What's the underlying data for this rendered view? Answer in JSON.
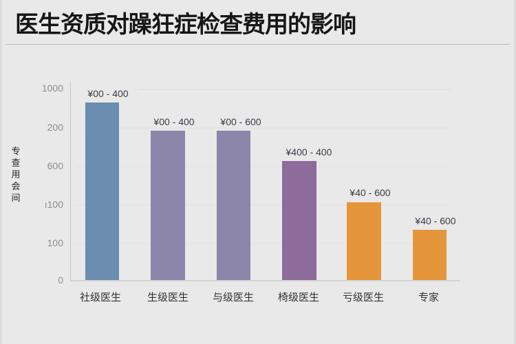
{
  "title": "医生资质对躁狂症检查费用的影响",
  "colors": {
    "blue": "#6a8db0",
    "lavender": "#8c86ab",
    "purple": "#8d6b9b",
    "orange": "#e5963b"
  },
  "axes": {
    "ylabel": "专查用会间",
    "yticks": [
      "1000",
      "200",
      "600",
      "ı100",
      "100",
      "0"
    ],
    "xticks": [
      "社级医生",
      "生级医生",
      "与级医生",
      "椅级医生",
      "亏级医生",
      "专家"
    ]
  },
  "bars": [
    {
      "category": "社级医生",
      "label": "¥00 - 400",
      "color": "#6a8db0"
    },
    {
      "category": "生级医生",
      "label": "¥00 - 400",
      "color": "#8c86ab"
    },
    {
      "category": "与级医生",
      "label": "¥00 - 600",
      "color": "#8c86ab"
    },
    {
      "category": "椅级医生",
      "label": "¥400 - 400",
      "color": "#8d6b9b"
    },
    {
      "category": "亏级医生",
      "label": "¥40 - 600",
      "color": "#e5963b"
    },
    {
      "category": "专家",
      "label": "¥40 - 600",
      "color": "#e5963b"
    }
  ],
  "chart_data": {
    "type": "bar",
    "title": "医生资质对躁狂症检查费用的影响",
    "xlabel": "",
    "ylabel": "专查用会间",
    "categories": [
      "社级医生",
      "生级医生",
      "与级医生",
      "椅级医生",
      "亏级医生",
      "专家"
    ],
    "values": [
      930,
      780,
      780,
      620,
      400,
      260
    ],
    "value_labels": [
      "¥00 - 400",
      "¥00 - 400",
      "¥00 - 600",
      "¥400 - 400",
      "¥40 - 600",
      "¥40 - 600"
    ],
    "ytick_labels": [
      "1000",
      "200",
      "600",
      "ı100",
      "100",
      "0"
    ],
    "ylim": [
      0,
      1000
    ],
    "grid": true,
    "legend": null,
    "bar_colors": [
      "#6a8db0",
      "#8c86ab",
      "#8c86ab",
      "#8d6b9b",
      "#e5963b",
      "#e5963b"
    ]
  }
}
